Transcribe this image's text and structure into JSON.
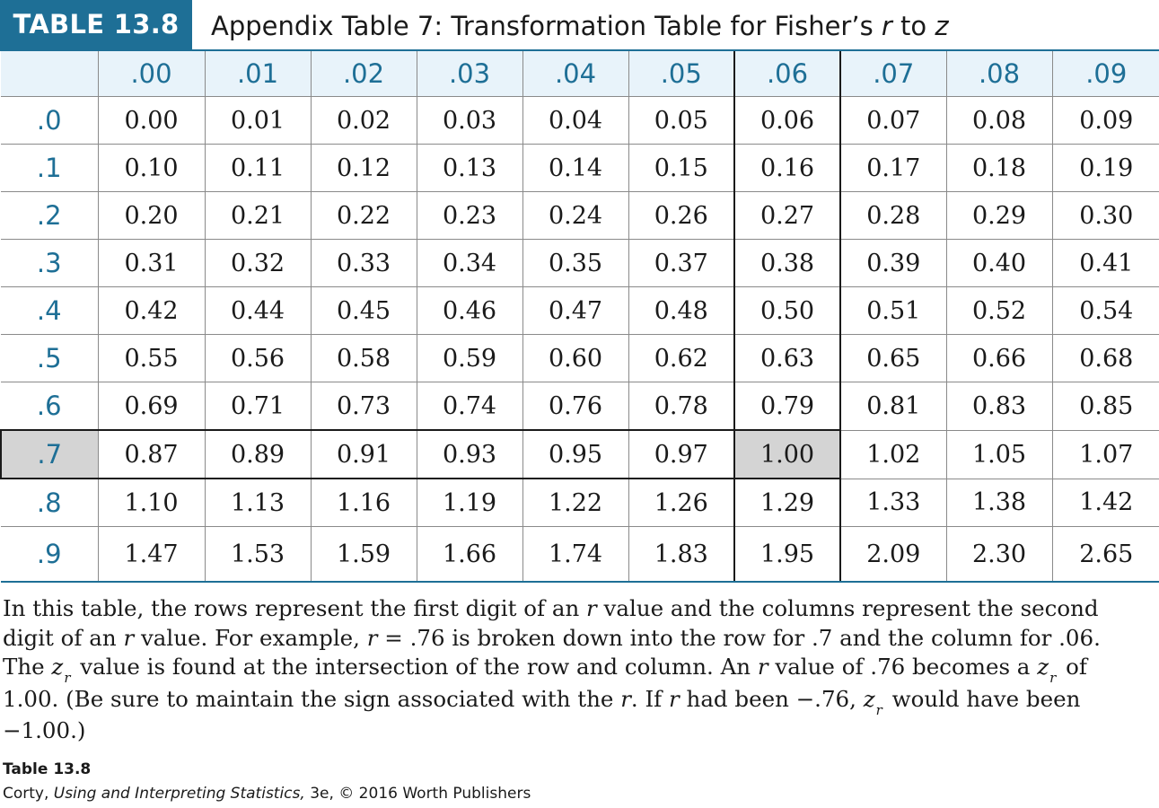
{
  "title": {
    "badge": "TABLE 13.8",
    "prefix": "Appendix Table 7: Transformation Table for Fisher’s ",
    "r": "r",
    "to": " to ",
    "z": "z"
  },
  "table": {
    "corner": "",
    "columns": [
      ".00",
      ".01",
      ".02",
      ".03",
      ".04",
      ".05",
      ".06",
      ".07",
      ".08",
      ".09"
    ],
    "rows": [
      {
        "label": ".0",
        "values": [
          "0.00",
          "0.01",
          "0.02",
          "0.03",
          "0.04",
          "0.05",
          "0.06",
          "0.07",
          "0.08",
          "0.09"
        ]
      },
      {
        "label": ".1",
        "values": [
          "0.10",
          "0.11",
          "0.12",
          "0.13",
          "0.14",
          "0.15",
          "0.16",
          "0.17",
          "0.18",
          "0.19"
        ]
      },
      {
        "label": ".2",
        "values": [
          "0.20",
          "0.21",
          "0.22",
          "0.23",
          "0.24",
          "0.26",
          "0.27",
          "0.28",
          "0.29",
          "0.30"
        ]
      },
      {
        "label": ".3",
        "values": [
          "0.31",
          "0.32",
          "0.33",
          "0.34",
          "0.35",
          "0.37",
          "0.38",
          "0.39",
          "0.40",
          "0.41"
        ]
      },
      {
        "label": ".4",
        "values": [
          "0.42",
          "0.44",
          "0.45",
          "0.46",
          "0.47",
          "0.48",
          "0.50",
          "0.51",
          "0.52",
          "0.54"
        ]
      },
      {
        "label": ".5",
        "values": [
          "0.55",
          "0.56",
          "0.58",
          "0.59",
          "0.60",
          "0.62",
          "0.63",
          "0.65",
          "0.66",
          "0.68"
        ]
      },
      {
        "label": ".6",
        "values": [
          "0.69",
          "0.71",
          "0.73",
          "0.74",
          "0.76",
          "0.78",
          "0.79",
          "0.81",
          "0.83",
          "0.85"
        ]
      },
      {
        "label": ".7",
        "values": [
          "0.87",
          "0.89",
          "0.91",
          "0.93",
          "0.95",
          "0.97",
          "1.00",
          "1.02",
          "1.05",
          "1.07"
        ]
      },
      {
        "label": ".8",
        "values": [
          "1.10",
          "1.13",
          "1.16",
          "1.19",
          "1.22",
          "1.26",
          "1.29",
          "1.33",
          "1.38",
          "1.42"
        ]
      },
      {
        "label": ".9",
        "values": [
          "1.47",
          "1.53",
          "1.59",
          "1.66",
          "1.74",
          "1.83",
          "1.95",
          "2.09",
          "2.30",
          "2.65"
        ]
      }
    ],
    "highlight": {
      "column": ".06",
      "row": ".7",
      "value": "1.00"
    }
  },
  "caption": {
    "l1a": "In this table, the rows represent the first digit of an ",
    "l1r": "r",
    "l1b": " value and the columns represent the second",
    "l2a": "digit of an ",
    "l2r": "r",
    "l2b": " value. For example, ",
    "l2r2": "r",
    "l2c": " = .76 is broken down into the row for .7 and the column for .06.",
    "l3a": "The ",
    "l3z": "z",
    "l3sub": "r",
    "l3b": " value is found at the intersection of the row and column. An ",
    "l3r": "r",
    "l3c": " value of .76 becomes a ",
    "l3z2": "z",
    "l3sub2": "r",
    "l3d": " of",
    "l4a": "1.00. (Be sure to maintain the sign associated with the ",
    "l4r": "r",
    "l4b": ". If ",
    "l4r2": "r",
    "l4c": " had been −.76, ",
    "l4z": "z",
    "l4sub": "r",
    "l4d": " would have been",
    "l5": "−1.00.)"
  },
  "footer": {
    "label": "Table 13.8",
    "author": "Corty, ",
    "book": "Using and Interpreting Statistics,",
    "rest": " 3e, © 2016 Worth Publishers"
  },
  "colors": {
    "accent": "#1e6f96",
    "header_bg": "#e8f3fa",
    "highlight": "#d4d4d4"
  }
}
